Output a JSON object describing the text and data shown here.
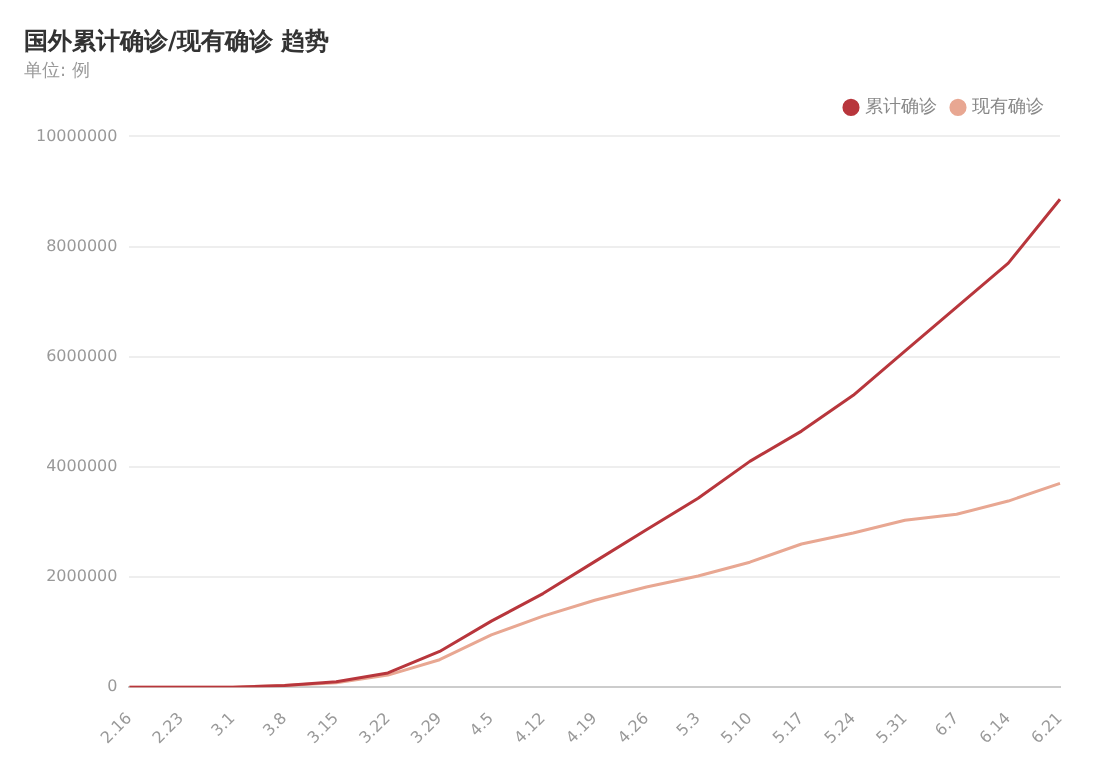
{
  "chart_data": {
    "type": "line",
    "title": "国外累计确诊/现有确诊 趋势",
    "subtitle": "单位: 例",
    "categories": [
      "2.16",
      "2.23",
      "3.1",
      "3.8",
      "3.15",
      "3.22",
      "3.29",
      "4.5",
      "4.12",
      "4.19",
      "4.26",
      "5.3",
      "5.10",
      "5.17",
      "5.24",
      "5.31",
      "6.7",
      "6.14",
      "6.21"
    ],
    "series": [
      {
        "name": "累计确诊",
        "color": "#b8363c",
        "values": [
          0,
          0,
          0,
          30000,
          100000,
          260000,
          650000,
          1200000,
          1700000,
          2280000,
          2860000,
          3430000,
          4100000,
          4650000,
          5300000,
          6100000,
          6900000,
          7700000,
          8860000
        ]
      },
      {
        "name": "现有确诊",
        "color": "#e8a792",
        "values": [
          0,
          0,
          0,
          30000,
          80000,
          220000,
          500000,
          950000,
          1290000,
          1580000,
          1820000,
          2020000,
          2270000,
          2600000,
          2800000,
          3030000,
          3140000,
          3380000,
          3700000
        ]
      }
    ],
    "ylim": [
      0,
      10000000
    ],
    "yticks": [
      0,
      2000000,
      4000000,
      6000000,
      8000000,
      10000000
    ],
    "grid": "y",
    "legend": "top right",
    "marker": "none",
    "line_style": "solid"
  }
}
